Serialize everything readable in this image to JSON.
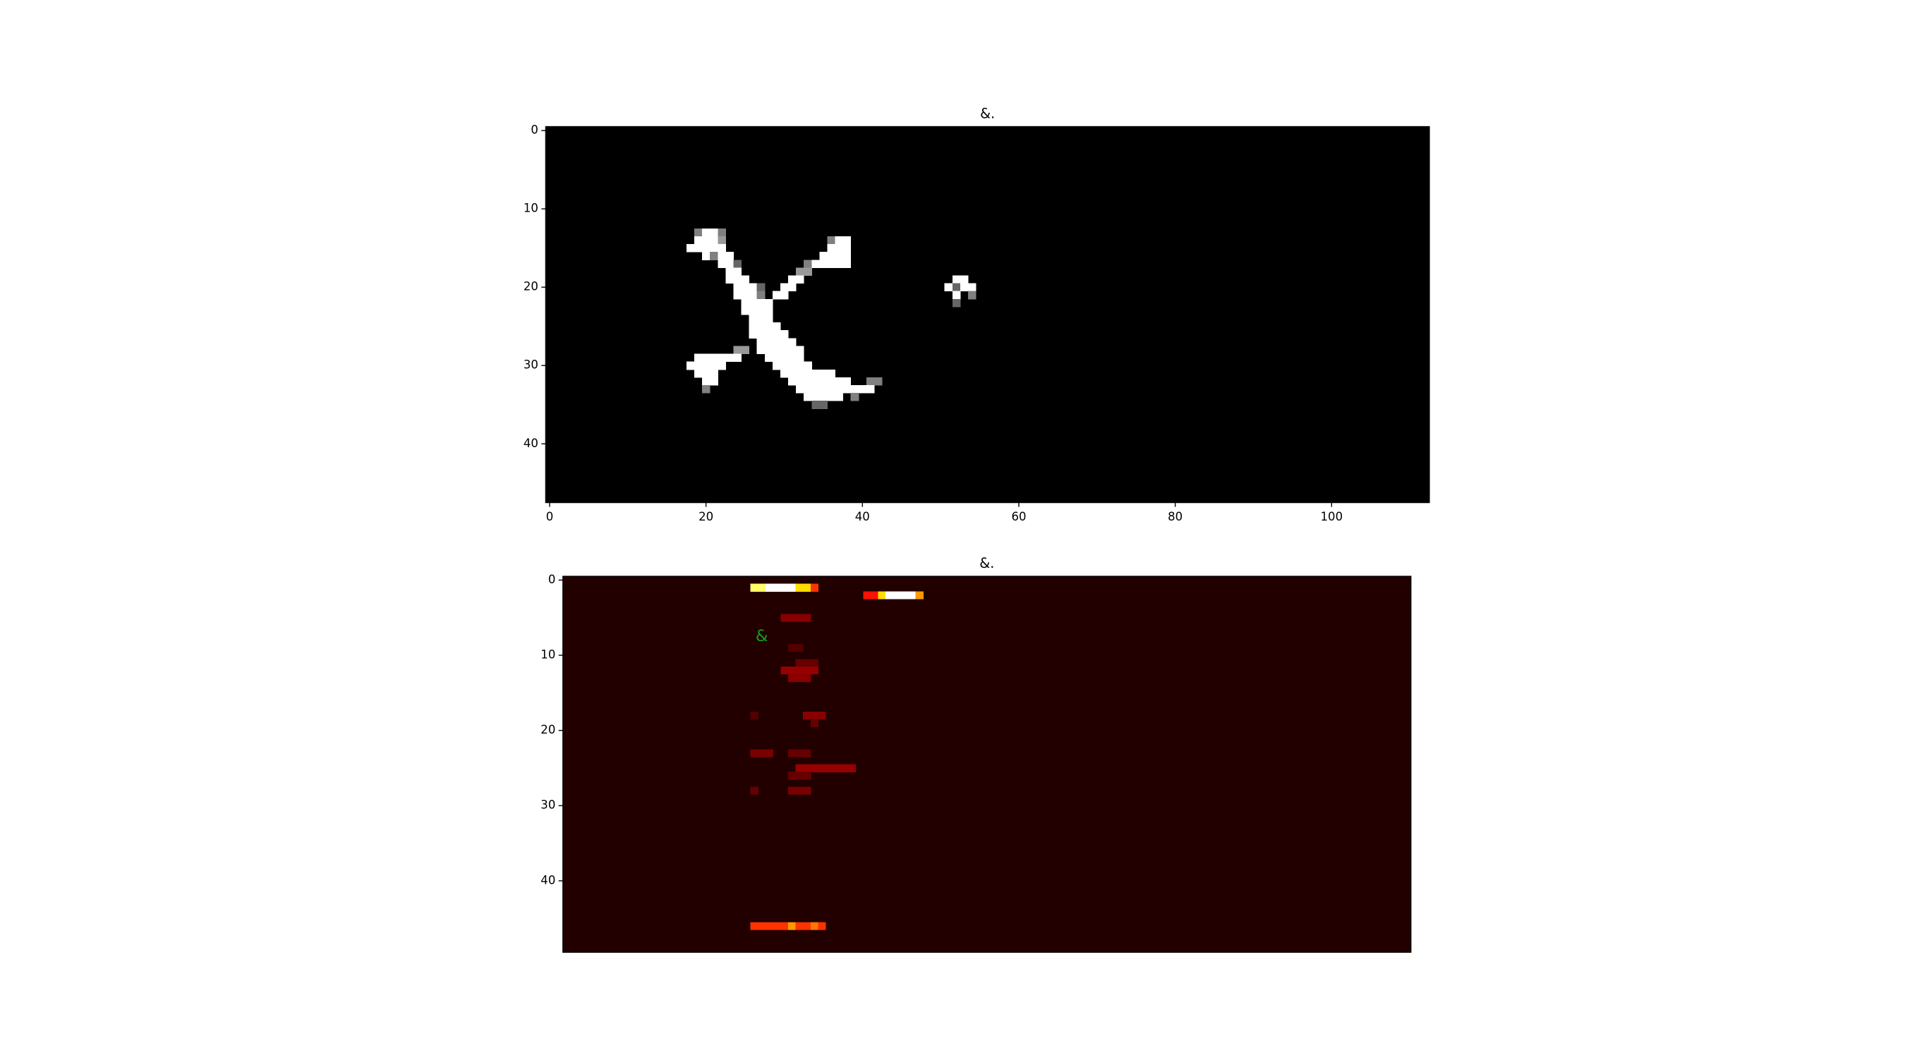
{
  "chart_data": [
    {
      "type": "image",
      "title": "&.",
      "cmap": "gray",
      "vlim": [
        0,
        1
      ],
      "base_value": 0,
      "xlim": [
        -0.5,
        112.5
      ],
      "ylim": [
        47.5,
        -0.5
      ],
      "xticks": [
        0,
        20,
        40,
        60,
        80,
        100
      ],
      "yticks": [
        0,
        10,
        20,
        30,
        40
      ],
      "cells": [
        [
          13,
          19,
          19,
          0.5
        ],
        [
          13,
          20,
          21,
          1
        ],
        [
          13,
          22,
          22,
          0.5
        ],
        [
          14,
          19,
          21,
          1
        ],
        [
          14,
          22,
          22,
          0.6
        ],
        [
          14,
          36,
          36,
          0.5
        ],
        [
          14,
          37,
          38,
          1
        ],
        [
          15,
          18,
          22,
          1
        ],
        [
          15,
          36,
          38,
          1
        ],
        [
          16,
          20,
          20,
          1
        ],
        [
          16,
          21,
          21,
          0.5
        ],
        [
          16,
          22,
          23,
          1
        ],
        [
          16,
          35,
          38,
          1
        ],
        [
          17,
          22,
          23,
          1
        ],
        [
          17,
          24,
          24,
          0.4
        ],
        [
          17,
          33,
          33,
          0.5
        ],
        [
          17,
          34,
          38,
          1
        ],
        [
          18,
          23,
          24,
          1
        ],
        [
          18,
          32,
          33,
          0.6
        ],
        [
          19,
          23,
          25,
          1
        ],
        [
          19,
          31,
          32,
          1
        ],
        [
          19,
          52,
          53,
          1
        ],
        [
          20,
          24,
          26,
          1
        ],
        [
          20,
          27,
          27,
          0.4
        ],
        [
          20,
          30,
          31,
          1
        ],
        [
          20,
          51,
          51,
          1
        ],
        [
          20,
          52,
          52,
          0.4
        ],
        [
          20,
          53,
          54,
          1
        ],
        [
          21,
          24,
          26,
          1
        ],
        [
          21,
          27,
          27,
          0.5
        ],
        [
          21,
          29,
          30,
          1
        ],
        [
          21,
          52,
          52,
          1
        ],
        [
          21,
          54,
          54,
          0.5
        ],
        [
          22,
          25,
          28,
          1
        ],
        [
          22,
          52,
          52,
          0.4
        ],
        [
          23,
          25,
          28,
          1
        ],
        [
          24,
          26,
          28,
          1
        ],
        [
          25,
          26,
          29,
          1
        ],
        [
          26,
          26,
          30,
          1
        ],
        [
          27,
          27,
          31,
          1
        ],
        [
          28,
          24,
          25,
          0.6
        ],
        [
          28,
          27,
          32,
          1
        ],
        [
          29,
          19,
          24,
          1
        ],
        [
          29,
          28,
          32,
          1
        ],
        [
          30,
          18,
          22,
          1
        ],
        [
          30,
          29,
          33,
          1
        ],
        [
          31,
          19,
          21,
          1
        ],
        [
          31,
          30,
          36,
          1
        ],
        [
          32,
          20,
          21,
          1
        ],
        [
          32,
          31,
          38,
          1
        ],
        [
          32,
          41,
          42,
          0.5
        ],
        [
          33,
          20,
          20,
          0.5
        ],
        [
          33,
          32,
          41,
          1
        ],
        [
          34,
          33,
          37,
          1
        ],
        [
          34,
          39,
          39,
          0.5
        ],
        [
          35,
          34,
          35,
          0.4
        ]
      ]
    },
    {
      "type": "image",
      "title": "&.",
      "cmap": "hot",
      "vlim": [
        0,
        1
      ],
      "base_value": 0.05,
      "xlim": [
        -0.5,
        112.5
      ],
      "ylim": [
        49.5,
        -0.5
      ],
      "yticks": [
        0,
        10,
        20,
        30,
        40
      ],
      "annotation": "&",
      "annotation_color": "#1a9a1a",
      "cells": [
        [
          1,
          25,
          26,
          0.85
        ],
        [
          1,
          27,
          30,
          1
        ],
        [
          1,
          31,
          32,
          0.7
        ],
        [
          1,
          33,
          33,
          0.45
        ],
        [
          2,
          40,
          41,
          0.4
        ],
        [
          2,
          42,
          42,
          0.7
        ],
        [
          2,
          43,
          46,
          1
        ],
        [
          2,
          47,
          47,
          0.6
        ],
        [
          5,
          29,
          32,
          0.2
        ],
        [
          9,
          30,
          31,
          0.12
        ],
        [
          11,
          31,
          33,
          0.15
        ],
        [
          12,
          29,
          33,
          0.22
        ],
        [
          13,
          30,
          32,
          0.2
        ],
        [
          18,
          25,
          25,
          0.12
        ],
        [
          18,
          32,
          34,
          0.2
        ],
        [
          19,
          33,
          33,
          0.15
        ],
        [
          23,
          25,
          27,
          0.18
        ],
        [
          23,
          30,
          32,
          0.15
        ],
        [
          25,
          31,
          38,
          0.22
        ],
        [
          26,
          30,
          32,
          0.15
        ],
        [
          28,
          25,
          25,
          0.15
        ],
        [
          28,
          30,
          32,
          0.18
        ],
        [
          46,
          25,
          29,
          0.45
        ],
        [
          46,
          30,
          30,
          0.6
        ],
        [
          46,
          31,
          32,
          0.45
        ],
        [
          46,
          33,
          33,
          0.55
        ],
        [
          46,
          34,
          34,
          0.45
        ]
      ]
    }
  ]
}
